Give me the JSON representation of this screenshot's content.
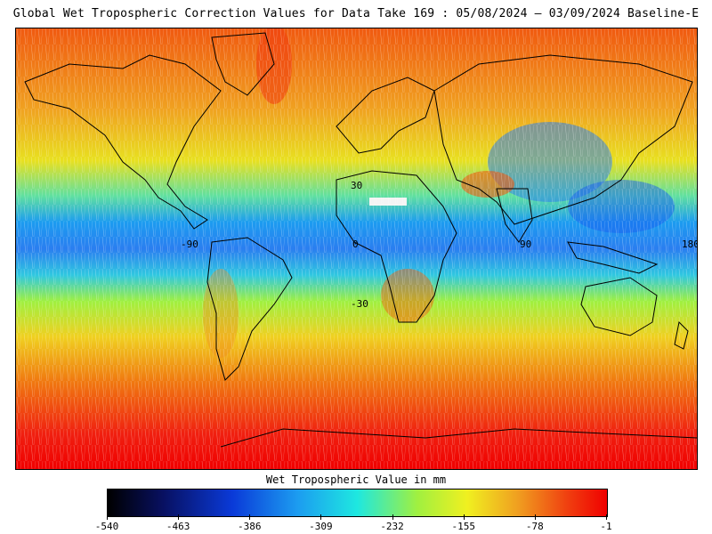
{
  "title": "Global Wet Tropospheric Correction Values for Data Take 169 : 05/08/2024 — 03/09/2024 Baseline-E",
  "map": {
    "lon_labels": [
      "-90",
      "0",
      "90",
      "180"
    ],
    "lat_labels": [
      "30",
      "-30"
    ],
    "coastline_color": "#000000"
  },
  "colorbar": {
    "title": "Wet Tropospheric Value in mm",
    "ticks": [
      "-540",
      "-463",
      "-386",
      "-309",
      "-232",
      "-155",
      "-78",
      "-1"
    ],
    "range": [
      -540,
      -1
    ],
    "colors": [
      "#000000",
      "#081060",
      "#0a3ad8",
      "#1c9cf0",
      "#1ee8e0",
      "#a0f040",
      "#f0f020",
      "#f0a020",
      "#f04010",
      "#f00000"
    ]
  }
}
